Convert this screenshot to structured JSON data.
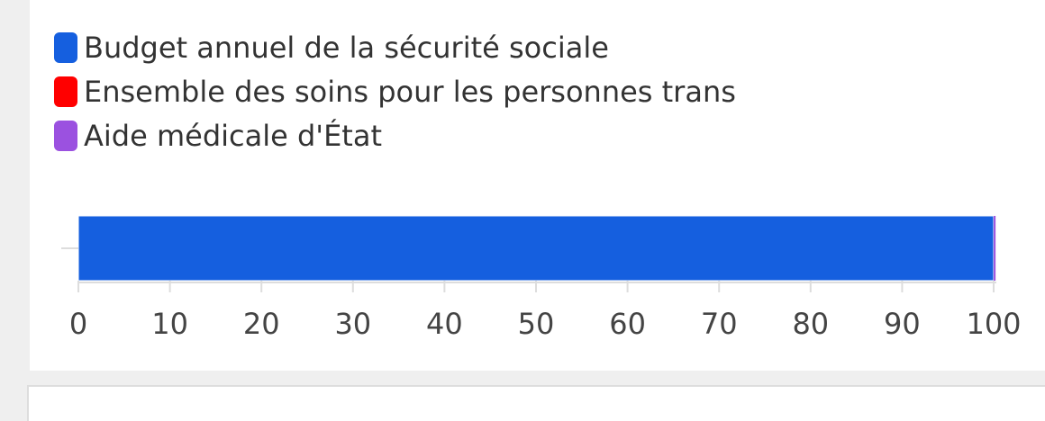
{
  "chart_data": {
    "type": "bar",
    "orientation": "horizontal",
    "stacked": true,
    "categories": [
      ""
    ],
    "series": [
      {
        "name": "Budget annuel de la sécurité sociale",
        "values": [
          100
        ],
        "color": "#155fdf"
      },
      {
        "name": "Ensemble des soins pour les personnes trans",
        "values": [
          0.01
        ],
        "color": "#ff0000"
      },
      {
        "name": "Aide médicale d'État",
        "values": [
          0.2
        ],
        "color": "#9b51e0"
      }
    ],
    "xlim": [
      0,
      100
    ],
    "xticks": [
      "0",
      "10",
      "20",
      "30",
      "40",
      "50",
      "60",
      "70",
      "80",
      "90",
      "100"
    ],
    "legend_position": "top-left",
    "grid": false
  }
}
